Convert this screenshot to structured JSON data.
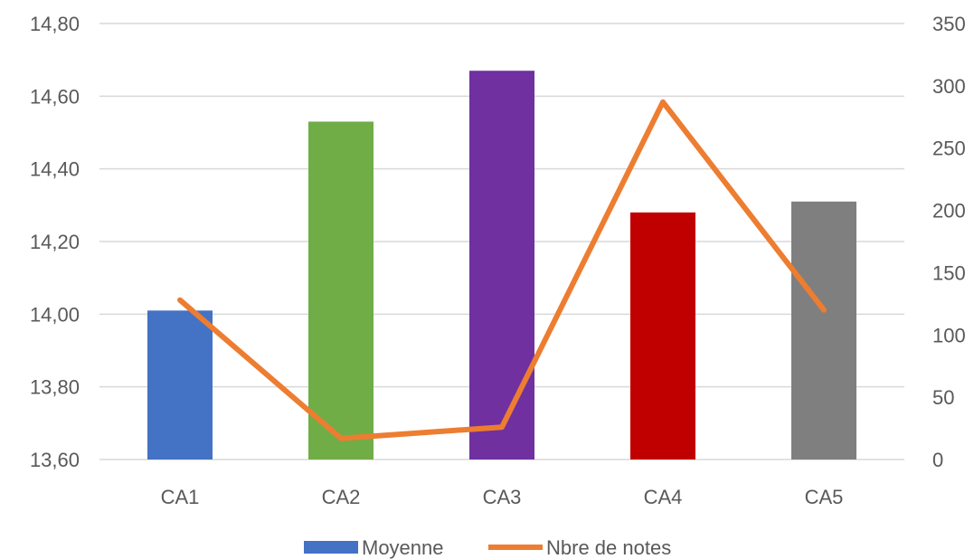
{
  "chart_data": {
    "type": "bar",
    "categories": [
      "CA1",
      "CA2",
      "CA3",
      "CA4",
      "CA5"
    ],
    "series": [
      {
        "name": "Moyenne",
        "kind": "bar",
        "axis": "left",
        "values": [
          14.01,
          14.53,
          14.67,
          14.28,
          14.31
        ],
        "colors": [
          "#4472C4",
          "#70AD47",
          "#7030A0",
          "#C00000",
          "#7F7F7F"
        ],
        "legend_color": "#4472C4"
      },
      {
        "name": "Nbre de notes",
        "kind": "line",
        "axis": "right",
        "values": [
          128,
          17,
          26,
          287,
          120
        ],
        "color": "#ED7D31"
      }
    ],
    "y_left": {
      "min": 13.6,
      "max": 14.8,
      "ticks": [
        "13,60",
        "13,80",
        "14,00",
        "14,20",
        "14,40",
        "14,60",
        "14,80"
      ]
    },
    "y_right": {
      "min": 0,
      "max": 350,
      "ticks": [
        "0",
        "50",
        "100",
        "150",
        "200",
        "250",
        "300",
        "350"
      ]
    },
    "grid": true,
    "legend_position": "bottom",
    "grid_color": "#D9D9D9",
    "text_color": "#595959"
  }
}
